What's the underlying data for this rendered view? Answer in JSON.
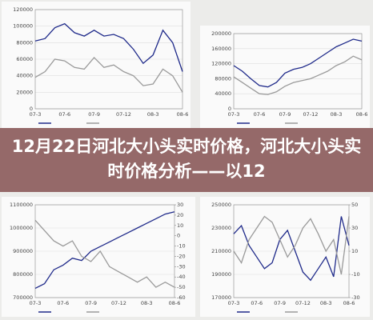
{
  "title": "12月22日河北大小头实时价格，河北大小头实时价格分析——以12",
  "chart_data": [
    {
      "type": "line",
      "categories": [
        "07-3",
        null,
        null,
        "07-6",
        null,
        null,
        "07-9",
        null,
        null,
        "07-12",
        null,
        null,
        "08-3",
        null,
        null,
        "08-6"
      ],
      "ylim": [
        0,
        120000
      ],
      "yticks": [
        0,
        20000,
        40000,
        60000,
        80000,
        100000,
        120000
      ],
      "grid": true,
      "series": [
        {
          "color": "#1f2a8a",
          "values": [
            82000,
            85000,
            98000,
            103000,
            92000,
            88000,
            95000,
            88000,
            90000,
            85000,
            72000,
            55000,
            65000,
            95000,
            80000,
            45000
          ]
        },
        {
          "color": "#9a9a9a",
          "values": [
            38000,
            45000,
            60000,
            58000,
            50000,
            48000,
            62000,
            50000,
            53000,
            45000,
            40000,
            28000,
            30000,
            48000,
            40000,
            20000
          ]
        }
      ]
    },
    {
      "type": "line",
      "categories": [
        "07-3",
        null,
        null,
        "07-6",
        null,
        null,
        "07-9",
        null,
        null,
        "07-12",
        null,
        null,
        "08-3",
        null,
        null,
        "08-6"
      ],
      "ylim": [
        0,
        200000
      ],
      "yticks": [
        0,
        40000,
        80000,
        120000,
        160000,
        200000
      ],
      "grid": true,
      "series": [
        {
          "color": "#1f2a8a",
          "values": [
            115000,
            100000,
            80000,
            62000,
            58000,
            70000,
            95000,
            105000,
            110000,
            120000,
            135000,
            150000,
            165000,
            175000,
            185000,
            180000
          ]
        },
        {
          "color": "#9a9a9a",
          "values": [
            85000,
            70000,
            55000,
            40000,
            38000,
            45000,
            60000,
            70000,
            75000,
            80000,
            90000,
            100000,
            115000,
            125000,
            140000,
            130000
          ]
        }
      ]
    },
    {
      "type": "line",
      "categories": [
        "07-3",
        null,
        null,
        "07-6",
        null,
        null,
        "07-9",
        null,
        null,
        "07-12",
        null,
        null,
        "08-3",
        null,
        null,
        "08-6"
      ],
      "ylim": [
        700000,
        1100000
      ],
      "yticks": [
        700000,
        800000,
        900000,
        1000000,
        1100000
      ],
      "y2lim": [
        -60,
        30
      ],
      "y2ticks": [
        -60,
        -50,
        -40,
        -30,
        -20,
        -10,
        0,
        10,
        20,
        30
      ],
      "grid": true,
      "series": [
        {
          "color": "#1f2a8a",
          "values": [
            740000,
            760000,
            820000,
            840000,
            870000,
            860000,
            900000,
            920000,
            940000,
            960000,
            980000,
            1000000,
            1020000,
            1040000,
            1060000,
            1070000
          ]
        },
        {
          "color": "#9a9a9a",
          "axis": "y2",
          "values": [
            15,
            5,
            -5,
            -10,
            -5,
            -20,
            -25,
            -15,
            -30,
            -35,
            -40,
            -45,
            -40,
            -50,
            -45,
            -50
          ]
        }
      ]
    },
    {
      "type": "line",
      "categories": [
        "07-3",
        null,
        null,
        "07-6",
        null,
        null,
        "07-9",
        null,
        null,
        "07-12",
        null,
        null,
        "08-3",
        null,
        null,
        "08-6"
      ],
      "ylim": [
        170000,
        250000
      ],
      "yticks": [
        170000,
        190000,
        210000,
        230000,
        250000
      ],
      "y2lim": [
        -30,
        50
      ],
      "y2ticks": [
        -30,
        -10,
        10,
        30,
        50
      ],
      "grid": true,
      "series": [
        {
          "color": "#1f2a8a",
          "values": [
            225000,
            232000,
            215000,
            205000,
            195000,
            200000,
            220000,
            228000,
            210000,
            192000,
            185000,
            195000,
            205000,
            188000,
            240000,
            215000
          ]
        },
        {
          "color": "#9a9a9a",
          "axis": "y2",
          "values": [
            10,
            0,
            20,
            30,
            40,
            35,
            20,
            5,
            15,
            30,
            38,
            25,
            10,
            20,
            -10,
            40
          ]
        }
      ]
    }
  ]
}
